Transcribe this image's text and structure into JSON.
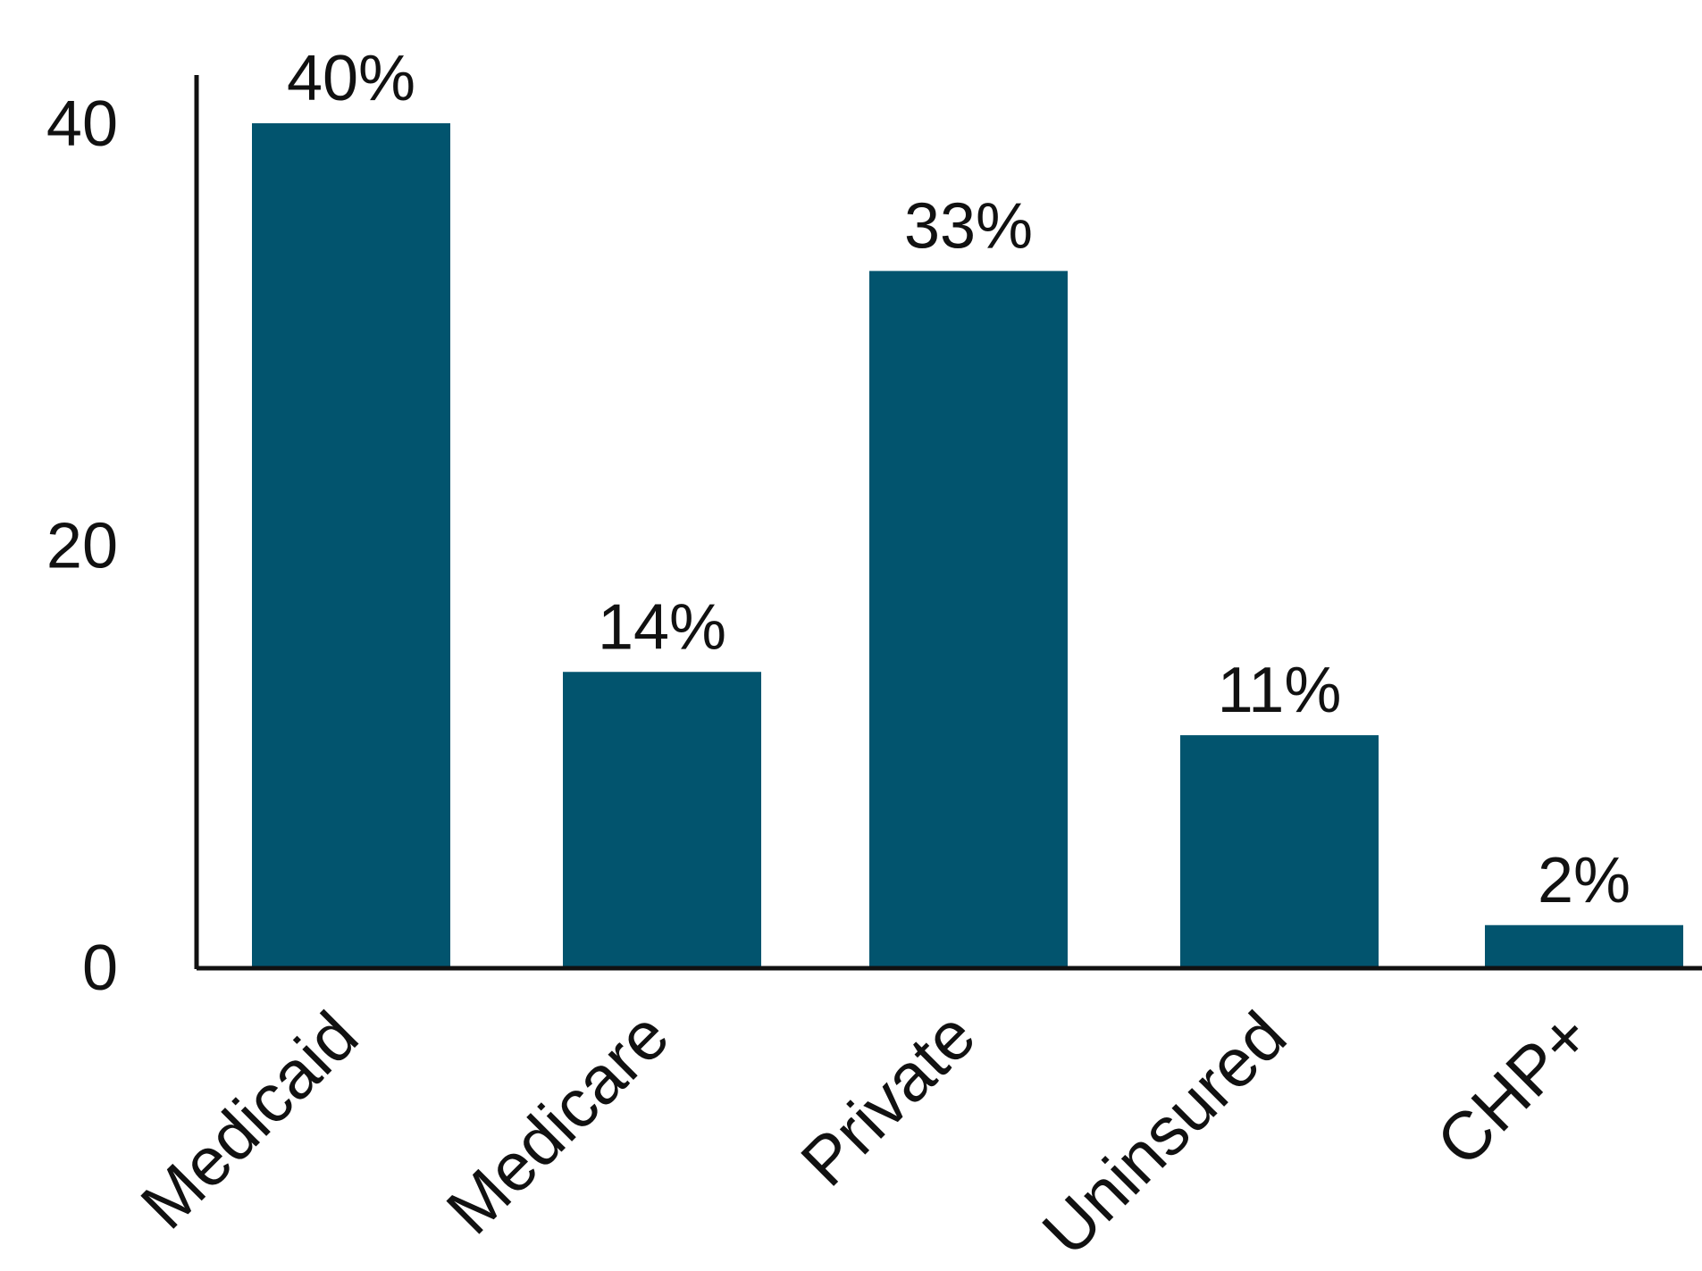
{
  "chart_data": {
    "type": "bar",
    "title": "",
    "xlabel": "",
    "ylabel": "",
    "categories": [
      "Medicaid",
      "Medicare",
      "Private",
      "Uninsured",
      "CHP+"
    ],
    "values": [
      40,
      14,
      33,
      11,
      2
    ],
    "data_labels": [
      "40%",
      "14%",
      "33%",
      "11%",
      "2%"
    ],
    "y_ticks": [
      0,
      20,
      40
    ],
    "y_tick_labels": [
      "0",
      "20",
      "40"
    ],
    "ylim": [
      0,
      42
    ],
    "grid": false,
    "legend": "none",
    "bar_color": "#02546E"
  }
}
